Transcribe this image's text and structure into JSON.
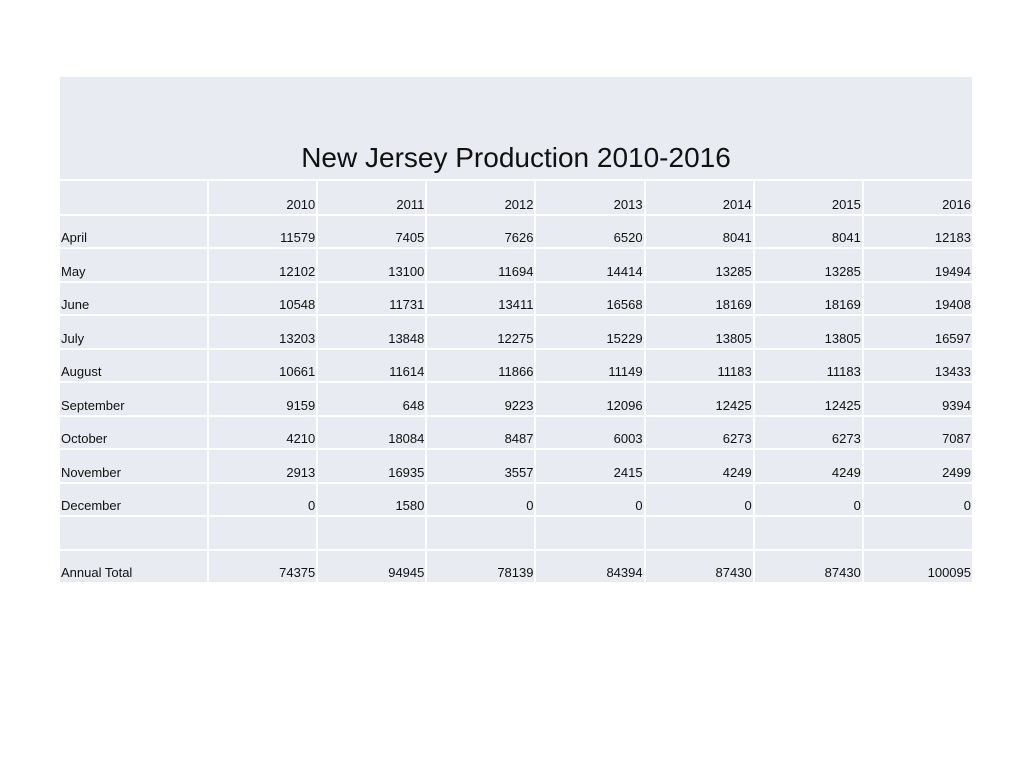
{
  "title": "New Jersey Production 2010-2016",
  "years": [
    "2010",
    "2011",
    "2012",
    "2013",
    "2014",
    "2015",
    "2016"
  ],
  "rows": [
    {
      "label": "April",
      "values": [
        "11579",
        "7405",
        "7626",
        "6520",
        "8041",
        "8041",
        "12183"
      ]
    },
    {
      "label": "May",
      "values": [
        "12102",
        "13100",
        "11694",
        "14414",
        "13285",
        "13285",
        "19494"
      ]
    },
    {
      "label": "June",
      "values": [
        "10548",
        "11731",
        "13411",
        "16568",
        "18169",
        "18169",
        "19408"
      ]
    },
    {
      "label": "July",
      "values": [
        "13203",
        "13848",
        "12275",
        "15229",
        "13805",
        "13805",
        "16597"
      ]
    },
    {
      "label": "August",
      "values": [
        "10661",
        "11614",
        "11866",
        "11149",
        "11183",
        "11183",
        "13433"
      ]
    },
    {
      "label": "September",
      "values": [
        "9159",
        "648",
        "9223",
        "12096",
        "12425",
        "12425",
        "9394"
      ]
    },
    {
      "label": "October",
      "values": [
        "4210",
        "18084",
        "8487",
        "6003",
        "6273",
        "6273",
        "7087"
      ]
    },
    {
      "label": "November",
      "values": [
        "2913",
        "16935",
        "3557",
        "2415",
        "4249",
        "4249",
        "2499"
      ]
    },
    {
      "label": "December",
      "values": [
        "0",
        "1580",
        "0",
        "0",
        "0",
        "0",
        "0"
      ]
    }
  ],
  "total": {
    "label": "Annual Total",
    "values": [
      "74375",
      "94945",
      "78139",
      "84394",
      "87430",
      "87430",
      "100095"
    ]
  },
  "colors": {
    "cell_fill": "#e8ebf1",
    "grid_line": "#ffffff"
  }
}
